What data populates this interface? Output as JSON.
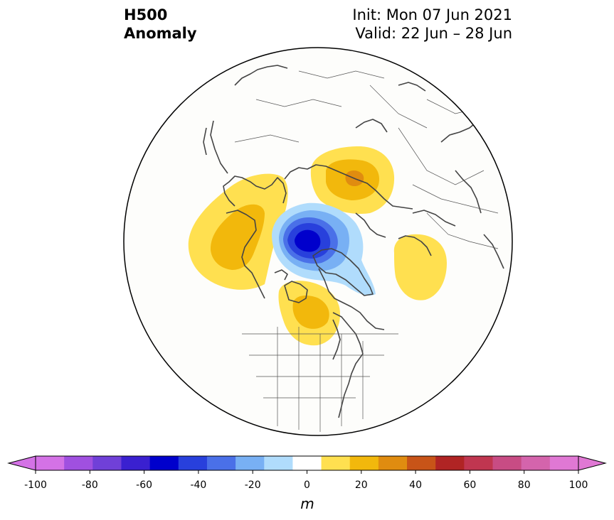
{
  "header": {
    "title_line1": "H500",
    "title_line2": "Anomaly",
    "init_text": "Init: Mon 07 Jun 2021",
    "valid_text": "Valid: 22 Jun – 28 Jun"
  },
  "colorbar": {
    "unit": "m",
    "ticks": [
      "-100",
      "-80",
      "-60",
      "-40",
      "-20",
      "0",
      "20",
      "40",
      "60",
      "80",
      "100"
    ],
    "levels": [
      -100,
      -90,
      -80,
      -70,
      -60,
      -50,
      -40,
      -30,
      -20,
      -10,
      10,
      20,
      30,
      40,
      50,
      60,
      70,
      80,
      90,
      100
    ],
    "colors": [
      "#d472e6",
      "#a050e0",
      "#7040d8",
      "#3a20d0",
      "#0000cc",
      "#2840dc",
      "#4a70e8",
      "#78b0f4",
      "#b0dcfc",
      "#ffffff",
      "#ffe050",
      "#f2b80c",
      "#e08c10",
      "#c85418",
      "#b02424",
      "#c03650",
      "#c84c84",
      "#d464ac",
      "#e078d4"
    ],
    "under_color": "#d472e6",
    "over_color": "#e078d4"
  },
  "map": {
    "projection": "north-polar-stereographic",
    "anomalies": [
      {
        "sign": "negative",
        "region": "Canadian Arctic / north of Greenland",
        "peak": -55
      },
      {
        "sign": "positive",
        "region": "Northern Siberia",
        "peak": 35
      },
      {
        "sign": "positive",
        "region": "Alaska / Bering",
        "peak": 25
      },
      {
        "sign": "positive",
        "region": "Hudson Bay",
        "peak": 25
      },
      {
        "sign": "positive",
        "region": "Western Europe",
        "peak": 15
      }
    ]
  }
}
